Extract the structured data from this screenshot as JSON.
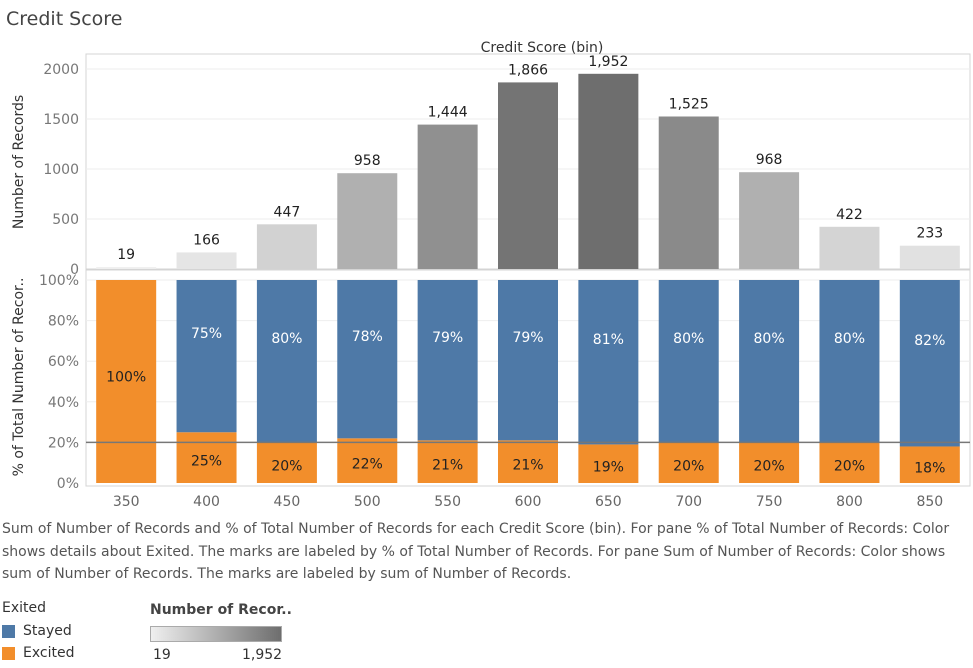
{
  "page_title": "Credit Score",
  "chart_data": {
    "type": "bar",
    "top_axis_title": "Credit Score (bin)",
    "categories": [
      "350",
      "400",
      "450",
      "500",
      "550",
      "600",
      "650",
      "700",
      "750",
      "800",
      "850"
    ],
    "panes": [
      {
        "id": "count",
        "ylabel": "Number of Records",
        "ylim": [
          0,
          2150
        ],
        "yticks": [
          0,
          500,
          1000,
          1500,
          2000
        ],
        "ytick_labels": [
          "0",
          "500",
          "1000",
          "1500",
          "2000"
        ],
        "values": [
          19,
          166,
          447,
          958,
          1444,
          1866,
          1952,
          1525,
          968,
          422,
          233
        ],
        "labels": [
          "19",
          "166",
          "447",
          "958",
          "1,444",
          "1,866",
          "1,952",
          "1,525",
          "968",
          "422",
          "233"
        ]
      },
      {
        "id": "percent",
        "ylabel": "% of Total Number of Recor..",
        "ylim": [
          0,
          100
        ],
        "yticks": [
          0,
          20,
          40,
          60,
          80,
          100
        ],
        "ytick_labels": [
          "0%",
          "20%",
          "40%",
          "60%",
          "80%",
          "100%"
        ],
        "reference_line": 20,
        "stacked": true,
        "series": [
          {
            "name": "Excited",
            "values": [
              100,
              25,
              20,
              22,
              21,
              21,
              19,
              20,
              20,
              20,
              18
            ],
            "labels": [
              "100%",
              "25%",
              "20%",
              "22%",
              "21%",
              "21%",
              "19%",
              "20%",
              "20%",
              "20%",
              "18%"
            ]
          },
          {
            "name": "Stayed",
            "values": [
              0,
              75,
              80,
              78,
              79,
              79,
              81,
              80,
              80,
              80,
              82
            ],
            "labels": [
              "",
              "75%",
              "80%",
              "78%",
              "79%",
              "79%",
              "81%",
              "80%",
              "80%",
              "80%",
              "82%"
            ]
          }
        ]
      }
    ],
    "grid": true
  },
  "caption": "Sum of Number of Records and % of Total Number of Records for each Credit Score (bin).  For pane % of Total Number of Records: Color shows details about Exited.  The marks are labeled by % of Total Number of Records.  For pane Sum of Number of Records: Color shows sum of Number of Records.  The marks are labeled by sum of Number of Records.",
  "legend_exited": {
    "title": "Exited",
    "items": [
      {
        "label": "Stayed",
        "color": "#4e79a7"
      },
      {
        "label": "Excited",
        "color": "#f28e2b"
      }
    ]
  },
  "legend_count": {
    "title": "Number of Recor..",
    "min_label": "19",
    "max_label": "1,952"
  },
  "colors": {
    "stayed": "#4e79a7",
    "excited": "#f28e2b",
    "gray_light": "#efefef",
    "gray_dark": "#6e6e6e"
  }
}
